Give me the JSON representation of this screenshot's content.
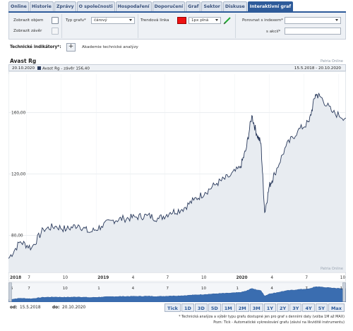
{
  "tabs": [
    {
      "label": "Online",
      "active": false
    },
    {
      "label": "Historie",
      "active": false
    },
    {
      "label": "Zprávy",
      "active": false
    },
    {
      "label": "O společnosti",
      "active": false
    },
    {
      "label": "Hospodaření",
      "active": false
    },
    {
      "label": "Doporučení",
      "active": false
    },
    {
      "label": "Graf",
      "active": false
    },
    {
      "label": "Sektor",
      "active": false
    },
    {
      "label": "Diskuse",
      "active": false
    },
    {
      "label": "Interaktivní graf",
      "active": true
    }
  ],
  "controls": {
    "show_volume_label": "Zobrazit objem",
    "show_close_label": "Zobrazit závěr",
    "chart_type_label": "Typ grafu*",
    "chart_type_value": "čárový",
    "trend_line_label": "Trendová linka",
    "trend_line_color": "#ee1111",
    "trend_line_style_value": "1px plná",
    "compare_index_label": "Porovnat s indexem*",
    "compare_index_value": "",
    "compare_stock_label": "s akcií*",
    "compare_stock_value": ""
  },
  "technical": {
    "label": "Technické indikátory*:",
    "add_symbol": "+",
    "academy_link": "Akademie technické analýzy"
  },
  "chart_header": {
    "title": "Avast Rg",
    "brand": "Patria Online",
    "brand_watermark": "Patria Online",
    "legend_date": "20.10.2020",
    "legend_series": "Avast Rg - závěr 156,40",
    "legend_range": "15.5.2018 - 20.10.2020"
  },
  "chart_data": {
    "type": "area",
    "title": "Avast Rg",
    "series_name": "Avast Rg - závěr",
    "last_value": 156.4,
    "ylim": [
      56,
      185
    ],
    "yticks": [
      80,
      120,
      160
    ],
    "ytick_labels": [
      "80,00",
      "120,00",
      "160,00"
    ],
    "xtick_labels": [
      "2018",
      "7",
      "10",
      "2019",
      "4",
      "7",
      "10",
      "2020",
      "4",
      "7",
      "10"
    ],
    "x": [
      "2018-05-15",
      "2018-06-15",
      "2018-07-15",
      "2018-08-15",
      "2018-09-15",
      "2018-10-15",
      "2018-11-15",
      "2018-12-15",
      "2019-01-15",
      "2019-02-15",
      "2019-03-15",
      "2019-04-15",
      "2019-05-15",
      "2019-06-15",
      "2019-07-15",
      "2019-08-15",
      "2019-09-15",
      "2019-10-15",
      "2019-11-15",
      "2019-12-15",
      "2020-01-15",
      "2020-01-31",
      "2020-02-15",
      "2020-02-28",
      "2020-03-10",
      "2020-03-20",
      "2020-04-01",
      "2020-04-15",
      "2020-05-15",
      "2020-06-15",
      "2020-07-15",
      "2020-08-01",
      "2020-08-15",
      "2020-09-15",
      "2020-10-20"
    ],
    "values": [
      65,
      76,
      72,
      84,
      86,
      84,
      87,
      82,
      86,
      90,
      91,
      92,
      93,
      91,
      95,
      97,
      103,
      108,
      114,
      118,
      124,
      136,
      158,
      146,
      140,
      95,
      112,
      120,
      138,
      148,
      154,
      172,
      170,
      160,
      156.4
    ],
    "navigator_labels": [
      "5",
      "7",
      "10",
      "1",
      "4",
      "7",
      "10",
      "1",
      "4",
      "7",
      "10"
    ],
    "grid": true,
    "fill_color": "#e8ecf1",
    "line_color": "#2a3a5c"
  },
  "range": {
    "from_label": "od:",
    "from_value": "15.5.2018",
    "to_label": "do:",
    "to_value": "20.10.2020"
  },
  "periods": [
    "Tick",
    "1D",
    "3D",
    "5D",
    "1M",
    "2M",
    "3M",
    "1Y",
    "2Y",
    "3Y",
    "4Y",
    "5Y",
    "Max"
  ],
  "notes": {
    "line1": "* Technická analýza a výběr typu grafu dostupné jen pro graf s denními daty (volba 1M až MAX)",
    "line2": "Pozn: Tick - Automatické vykreslování grafu (závisí na likviditě instrumentu)"
  }
}
